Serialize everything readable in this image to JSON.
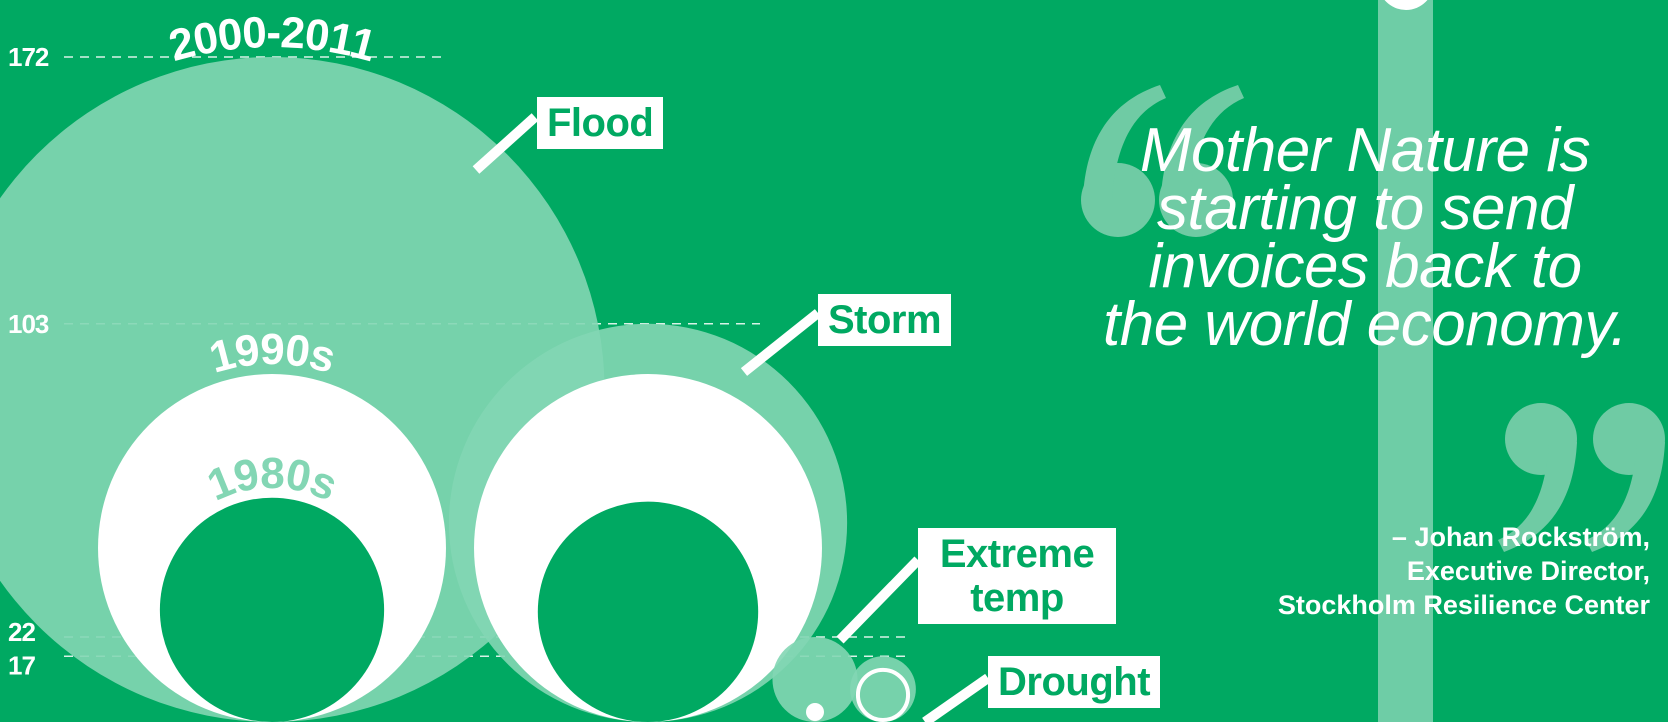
{
  "chart_data": {
    "type": "bubble",
    "ticks": [
      {
        "label": "172",
        "value": 172
      },
      {
        "label": "103",
        "value": 103
      },
      {
        "label": "22",
        "value": 22
      },
      {
        "label": "17",
        "value": 17
      }
    ],
    "periods": [
      "2000-2011",
      "1990s",
      "1980s"
    ],
    "categories": [
      {
        "name": "Flood",
        "values": {
          "2000-2011": 172,
          "1990s": 90,
          "1980s": 58
        }
      },
      {
        "name": "Storm",
        "values": {
          "2000-2011": 103,
          "1990s": 90,
          "1980s": 57
        }
      },
      {
        "name": "Extreme temp",
        "values": {
          "2000-2011": 22
        }
      },
      {
        "name": "Drought",
        "values": {
          "2000-2011": 17,
          "1990s": 14
        }
      }
    ],
    "period_labels": [
      {
        "category": "Flood",
        "period": "2000-2011",
        "text": "2000-2011"
      },
      {
        "category": "Flood",
        "period": "1990s",
        "text": "1990s"
      },
      {
        "category": "Flood",
        "period": "1980s",
        "text": "1980s"
      }
    ]
  },
  "quote": {
    "text": "Mother Nature is\nstarting to send\ninvoices back to\nthe world economy.",
    "attribution": [
      "– Johan Rockström,",
      "Executive Director,",
      "Stockholm Resilience Center"
    ]
  },
  "colors": {
    "background": "#00A962",
    "period_2000_2011": "#83D6B4",
    "period_1990s": "#FFFFFF",
    "period_1980s": "#00A962",
    "quote_marks": "#6FCBA4",
    "decor_bar": "#6ECDA6"
  }
}
